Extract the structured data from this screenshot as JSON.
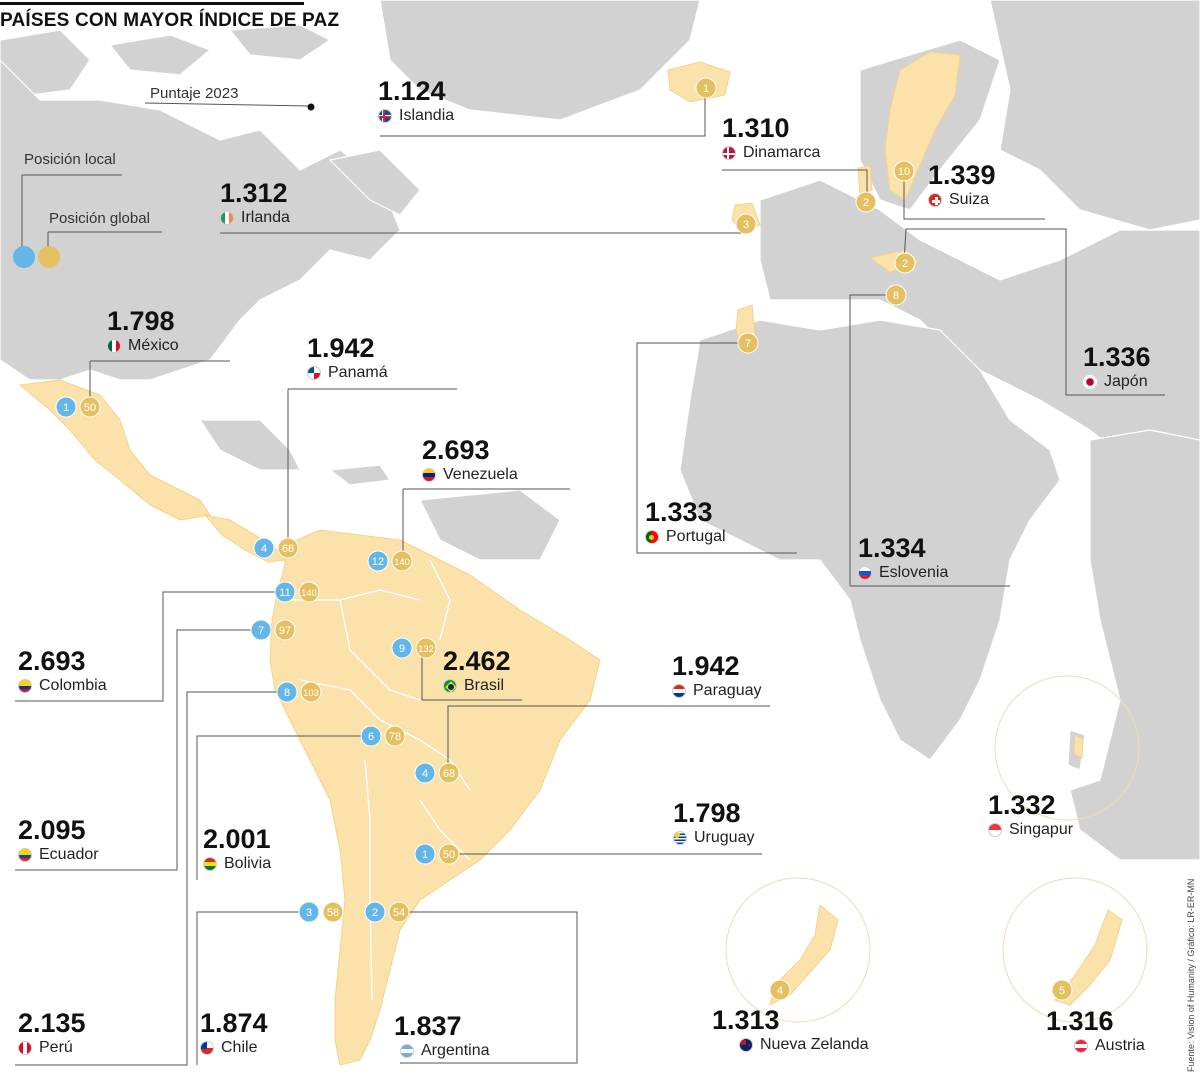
{
  "title": "PAÍSES CON MAYOR ÍNDICE DE PAZ",
  "legend": {
    "score_label": "Puntaje 2023",
    "local_label": "Posición local",
    "global_label": "Posición global",
    "local_color": "#62b6e8",
    "global_color": "#e5c060"
  },
  "source": "Fuente: Vision of Humanity / Gráfico: LR-ER-MN",
  "colors": {
    "land": "#d2d2d2",
    "highlight": "#fbe2ab",
    "badge_local": "#62b6e8",
    "badge_global": "#e5c060",
    "line": "#555555"
  },
  "world": [
    {
      "id": "islandia",
      "score": "1.124",
      "name": "Islandia",
      "global": "1",
      "flag": "iceland"
    },
    {
      "id": "dinamarca",
      "score": "1.310",
      "name": "Dinamarca",
      "global": "2",
      "flag": "denmark"
    },
    {
      "id": "irlanda",
      "score": "1.312",
      "name": "Irlanda",
      "global": "3",
      "flag": "ireland"
    },
    {
      "id": "suiza",
      "score": "1.339",
      "name": "Suiza",
      "global": "10",
      "flag": "switzerland"
    },
    {
      "id": "austria",
      "score": "1.316",
      "name": "Austria",
      "global": "2",
      "flag": "austria"
    },
    {
      "id": "eslovenia",
      "score": "1.334",
      "name": "Eslovenia",
      "global": "8",
      "flag": "slovenia"
    },
    {
      "id": "portugal",
      "score": "1.333",
      "name": "Portugal",
      "global": "7",
      "flag": "portugal"
    },
    {
      "id": "japon",
      "score": "1.336",
      "name": "Japón",
      "global": "5",
      "flag": "japan"
    },
    {
      "id": "singapur",
      "score": "1.332",
      "name": "Singapur",
      "global": "",
      "flag": "singapore"
    },
    {
      "id": "nueva-zelanda",
      "score": "1.313",
      "name": "Nueva Zelanda",
      "global": "4",
      "flag": "newzealand"
    }
  ],
  "americas": [
    {
      "id": "mexico",
      "score": "1.798",
      "name": "México",
      "local": "1",
      "global": "50",
      "flag": "mexico"
    },
    {
      "id": "panama",
      "score": "1.942",
      "name": "Panamá",
      "local": "4",
      "global": "68",
      "flag": "panama"
    },
    {
      "id": "venezuela",
      "score": "2.693",
      "name": "Venezuela",
      "local": "12",
      "global": "140",
      "flag": "venezuela"
    },
    {
      "id": "colombia",
      "score": "2.693",
      "name": "Colombia",
      "local": "11",
      "global": "140",
      "flag": "colombia"
    },
    {
      "id": "ecuador",
      "score": "2.095",
      "name": "Ecuador",
      "local": "7",
      "global": "97",
      "flag": "ecuador"
    },
    {
      "id": "peru",
      "score": "2.135",
      "name": "Perú",
      "local": "8",
      "global": "103",
      "flag": "peru"
    },
    {
      "id": "brasil",
      "score": "2.462",
      "name": "Brasil",
      "local": "9",
      "global": "132",
      "flag": "brasil"
    },
    {
      "id": "bolivia",
      "score": "2.001",
      "name": "Bolivia",
      "local": "6",
      "global": "78",
      "flag": "bolivia"
    },
    {
      "id": "paraguay",
      "score": "1.942",
      "name": "Paraguay",
      "local": "4",
      "global": "68",
      "flag": "paraguay"
    },
    {
      "id": "uruguay",
      "score": "1.798",
      "name": "Uruguay",
      "local": "1",
      "global": "50",
      "flag": "uruguay"
    },
    {
      "id": "chile",
      "score": "1.874",
      "name": "Chile",
      "local": "3",
      "global": "58",
      "flag": "chile"
    },
    {
      "id": "argentina",
      "score": "1.837",
      "name": "Argentina",
      "local": "2",
      "global": "54",
      "flag": "argentina"
    }
  ]
}
